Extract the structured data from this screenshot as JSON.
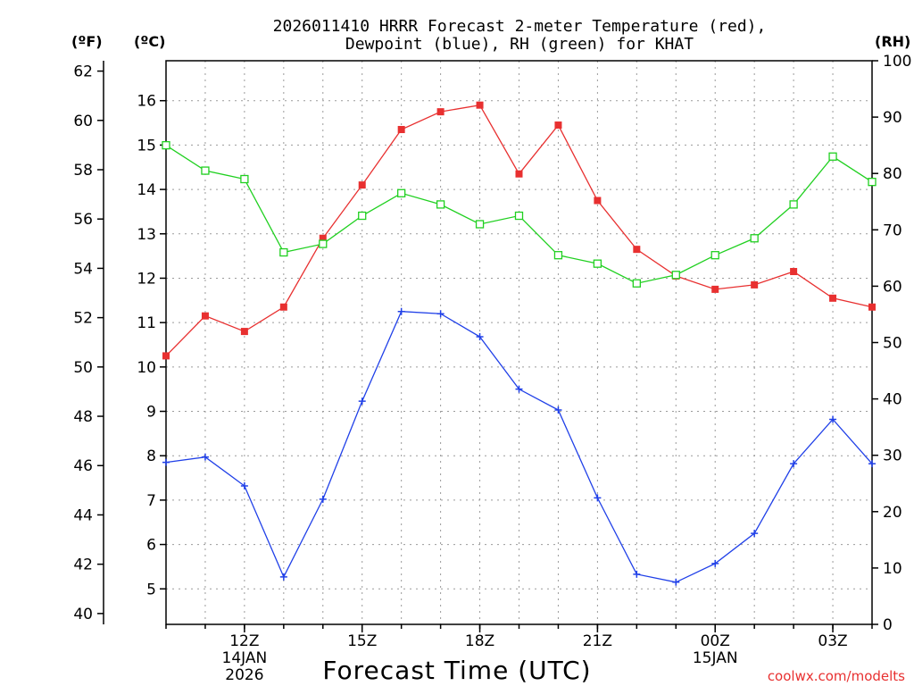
{
  "chart_data": {
    "type": "line",
    "title": "2026011410 HRRR Forecast 2-meter Temperature (red),",
    "subtitle": "Dewpoint (blue), RH (green) for KHAT",
    "xlabel": "Forecast Time (UTC)",
    "left_unit_f": "(ºF)",
    "left_unit_c": "(ºC)",
    "right_unit": "(RH)",
    "credit": "coolwx.com/modelts",
    "x_hours": [
      10,
      11,
      12,
      13,
      14,
      15,
      16,
      17,
      18,
      19,
      20,
      21,
      22,
      23,
      24,
      25,
      26,
      27,
      28
    ],
    "xlim": [
      10,
      28
    ],
    "x_ticks": [
      {
        "hour": 12,
        "label": "12Z",
        "sub1": "14JAN",
        "sub2": "2026"
      },
      {
        "hour": 15,
        "label": "15Z",
        "sub1": "",
        "sub2": ""
      },
      {
        "hour": 18,
        "label": "18Z",
        "sub1": "",
        "sub2": ""
      },
      {
        "hour": 21,
        "label": "21Z",
        "sub1": "",
        "sub2": ""
      },
      {
        "hour": 24,
        "label": "00Z",
        "sub1": "15JAN",
        "sub2": ""
      },
      {
        "hour": 27,
        "label": "03Z",
        "sub1": "",
        "sub2": ""
      }
    ],
    "c_ylim": [
      4.2,
      16.9
    ],
    "f_ylim": [
      39.56,
      62.42
    ],
    "rh_ylim": [
      0,
      100
    ],
    "c_ticks": [
      5,
      6,
      7,
      8,
      9,
      10,
      11,
      12,
      13,
      14,
      15,
      16
    ],
    "f_ticks": [
      40,
      42,
      44,
      46,
      48,
      50,
      52,
      54,
      56,
      58,
      60,
      62
    ],
    "rh_ticks": [
      0,
      10,
      20,
      30,
      40,
      50,
      60,
      70,
      80,
      90,
      100
    ],
    "series": [
      {
        "name": "Temperature",
        "axis": "c",
        "color": "#e83030",
        "marker": "filled-square",
        "values": [
          10.25,
          11.15,
          10.8,
          11.35,
          12.9,
          14.1,
          15.35,
          15.75,
          15.9,
          14.35,
          15.45,
          13.75,
          12.65,
          12.05,
          11.75,
          11.85,
          12.15,
          11.55,
          11.35
        ]
      },
      {
        "name": "Dewpoint",
        "axis": "c",
        "color": "#2040e8",
        "marker": "plus",
        "values": [
          7.85,
          7.97,
          7.32,
          5.27,
          7.02,
          9.23,
          11.25,
          11.2,
          10.68,
          9.5,
          9.03,
          7.05,
          5.33,
          5.15,
          5.57,
          6.25,
          7.82,
          8.82,
          7.82
        ]
      },
      {
        "name": "RH",
        "axis": "rh",
        "color": "#20d020",
        "marker": "open-square",
        "values": [
          85,
          80.5,
          79,
          66,
          67.5,
          72.5,
          76.5,
          74.5,
          71,
          72.5,
          65.5,
          64,
          60.5,
          62,
          65.5,
          68.5,
          74.5,
          83,
          78.5
        ]
      }
    ]
  }
}
